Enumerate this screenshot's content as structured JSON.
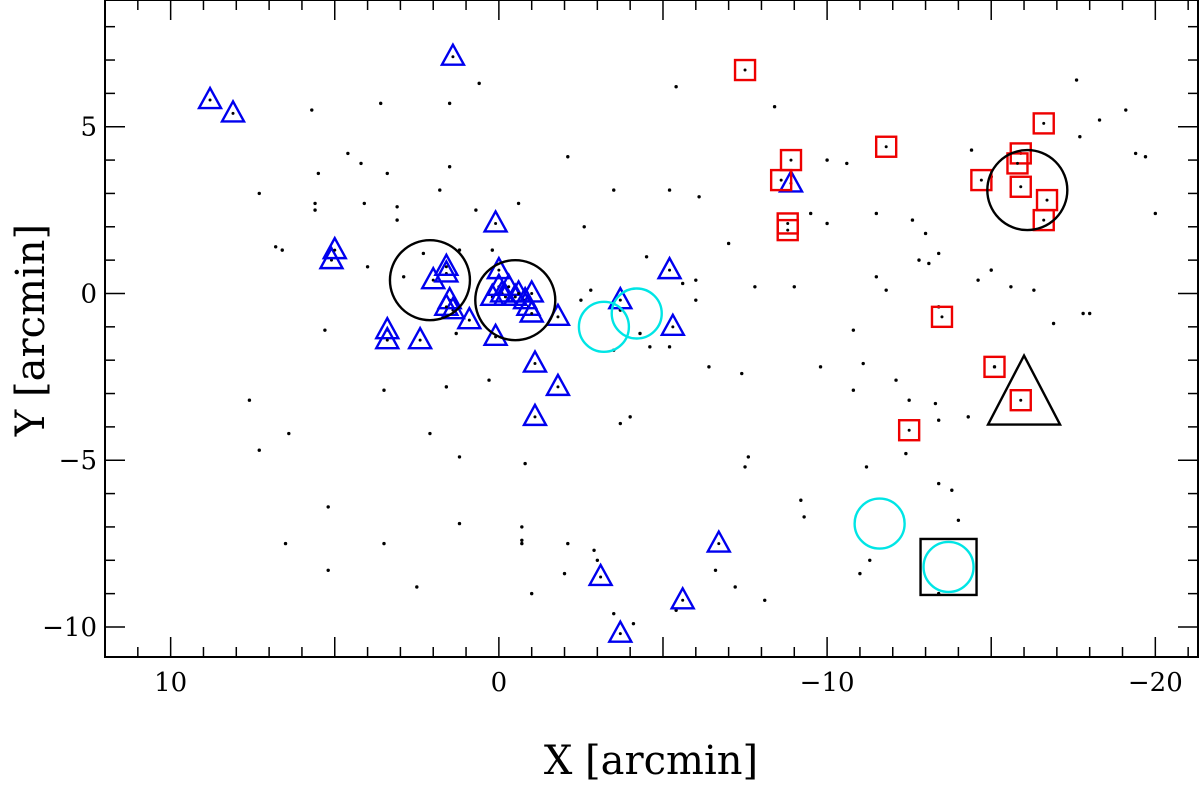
{
  "chart_data": {
    "type": "scatter",
    "title": "",
    "xlabel": "X [arcmin]",
    "ylabel": "Y [arcmin]",
    "xlim": [
      12,
      -21.3
    ],
    "ylim": [
      -10.9,
      8.8
    ],
    "x_reversed": true,
    "grid": false,
    "legend": "none",
    "x_ticks": [
      10,
      0,
      -10,
      -20
    ],
    "x_tick_labels": [
      "10",
      "0",
      "−10",
      "−20"
    ],
    "y_ticks": [
      5,
      0,
      -5,
      -10
    ],
    "y_tick_labels": [
      "5",
      "0",
      "−5",
      "−10"
    ],
    "series": [
      {
        "marker": "dot",
        "color": "#000000",
        "points": [
          [
            5.7,
            5.5
          ],
          [
            3.6,
            5.7
          ],
          [
            1.5,
            5.7
          ],
          [
            0.6,
            6.3
          ],
          [
            -5.4,
            6.2
          ],
          [
            -8.4,
            5.6
          ],
          [
            -17.6,
            6.4
          ],
          [
            -19.1,
            5.5
          ],
          [
            4.6,
            4.2
          ],
          [
            4.2,
            3.9
          ],
          [
            3.4,
            3.6
          ],
          [
            5.5,
            3.6
          ],
          [
            1.5,
            3.8
          ],
          [
            -2.1,
            4.1
          ],
          [
            -10.0,
            4.0
          ],
          [
            -10.6,
            3.9
          ],
          [
            -14.4,
            4.3
          ],
          [
            -15.0,
            3.5
          ],
          [
            -17.7,
            4.7
          ],
          [
            -18.3,
            5.2
          ],
          [
            -19.4,
            4.2
          ],
          [
            -19.7,
            4.1
          ],
          [
            -20.0,
            2.4
          ],
          [
            7.3,
            3.0
          ],
          [
            5.6,
            2.5
          ],
          [
            5.6,
            2.7
          ],
          [
            4.1,
            2.7
          ],
          [
            3.1,
            2.2
          ],
          [
            3.1,
            2.6
          ],
          [
            1.8,
            3.1
          ],
          [
            0.7,
            2.5
          ],
          [
            -0.6,
            2.7
          ],
          [
            -2.6,
            2.0
          ],
          [
            -3.5,
            3.1
          ],
          [
            -5.2,
            3.1
          ],
          [
            -6.1,
            2.9
          ],
          [
            -9.5,
            2.4
          ],
          [
            -10.0,
            2.1
          ],
          [
            -11.5,
            2.4
          ],
          [
            -12.6,
            2.2
          ],
          [
            -13.0,
            1.8
          ],
          [
            -13.4,
            1.2
          ],
          [
            -7.0,
            1.5
          ],
          [
            6.8,
            1.4
          ],
          [
            6.6,
            1.3
          ],
          [
            2.3,
            1.2
          ],
          [
            1.2,
            1.3
          ],
          [
            0.2,
            1.3
          ],
          [
            4.0,
            0.8
          ],
          [
            2.9,
            0.5
          ],
          [
            -4.5,
            1.1
          ],
          [
            -6.0,
            0.4
          ],
          [
            -5.6,
            0.3
          ],
          [
            -7.8,
            0.2
          ],
          [
            -9.0,
            0.2
          ],
          [
            -11.5,
            0.5
          ],
          [
            -12.8,
            1.0
          ],
          [
            -13.1,
            0.9
          ],
          [
            -14.6,
            0.4
          ],
          [
            -15.0,
            0.7
          ],
          [
            -15.6,
            0.2
          ],
          [
            -16.3,
            0.1
          ],
          [
            -18.0,
            -0.6
          ],
          [
            -13.4,
            -0.4
          ],
          [
            -11.8,
            0.1
          ],
          [
            -6.0,
            -0.2
          ],
          [
            -2.5,
            -0.2
          ],
          [
            -2.8,
            0.1
          ],
          [
            -3.7,
            -0.5
          ],
          [
            -4.3,
            -1.2
          ],
          [
            1.3,
            -1.2
          ],
          [
            5.3,
            -1.1
          ],
          [
            3.5,
            -2.9
          ],
          [
            1.6,
            -2.8
          ],
          [
            0.3,
            -2.6
          ],
          [
            -3.5,
            -1.7
          ],
          [
            -4.6,
            -1.6
          ],
          [
            -5.2,
            -1.6
          ],
          [
            -6.4,
            -2.2
          ],
          [
            -7.4,
            -2.4
          ],
          [
            -9.8,
            -2.2
          ],
          [
            -10.8,
            -1.1
          ],
          [
            -11.1,
            -2.1
          ],
          [
            -12.1,
            -2.6
          ],
          [
            -12.5,
            -3.2
          ],
          [
            -13.3,
            -3.3
          ],
          [
            -14.3,
            -3.7
          ],
          [
            -15.1,
            -2.2
          ],
          [
            -16.9,
            -0.9
          ],
          [
            -17.8,
            -0.6
          ],
          [
            -10.8,
            -2.9
          ],
          [
            7.6,
            -3.2
          ],
          [
            6.4,
            -4.2
          ],
          [
            7.3,
            -4.7
          ],
          [
            2.1,
            -4.2
          ],
          [
            1.2,
            -4.9
          ],
          [
            -0.8,
            -5.1
          ],
          [
            -3.7,
            -3.9
          ],
          [
            -4.0,
            -3.7
          ],
          [
            -7.6,
            -4.9
          ],
          [
            -7.5,
            -5.2
          ],
          [
            -11.2,
            -5.2
          ],
          [
            -12.4,
            -4.8
          ],
          [
            -13.4,
            -5.7
          ],
          [
            -13.8,
            -5.9
          ],
          [
            -13.4,
            -3.8
          ],
          [
            6.5,
            -7.5
          ],
          [
            5.2,
            -8.3
          ],
          [
            3.5,
            -7.5
          ],
          [
            2.5,
            -8.8
          ],
          [
            1.2,
            -6.9
          ],
          [
            -0.7,
            -7.0
          ],
          [
            -0.7,
            -7.4
          ],
          [
            -0.7,
            -7.5
          ],
          [
            -2.1,
            -7.5
          ],
          [
            -2.9,
            -7.7
          ],
          [
            -3.0,
            -8.0
          ],
          [
            -4.1,
            -9.9
          ],
          [
            -5.4,
            -9.5
          ],
          [
            -6.6,
            -8.3
          ],
          [
            -7.2,
            -8.8
          ],
          [
            -8.1,
            -9.2
          ],
          [
            -9.2,
            -6.2
          ],
          [
            -9.3,
            -6.7
          ],
          [
            -11.0,
            -8.4
          ],
          [
            -11.3,
            -8.0
          ],
          [
            -13.4,
            -9.0
          ],
          [
            -14.0,
            -6.8
          ],
          [
            -3.5,
            -9.6
          ],
          [
            -2.0,
            -8.4
          ],
          [
            -1.0,
            -9.0
          ],
          [
            5.2,
            -6.4
          ]
        ]
      },
      {
        "marker": "triangle",
        "color": "#0000ee",
        "points": [
          [
            8.8,
            5.8
          ],
          [
            8.1,
            5.4
          ],
          [
            1.4,
            7.1
          ],
          [
            5.1,
            1.0
          ],
          [
            5.0,
            1.3
          ],
          [
            3.4,
            -1.1
          ],
          [
            3.4,
            -1.4
          ],
          [
            2.4,
            -1.4
          ],
          [
            2.0,
            0.4
          ],
          [
            1.6,
            0.6
          ],
          [
            1.6,
            0.8
          ],
          [
            1.4,
            -0.5
          ],
          [
            1.5,
            -0.2
          ],
          [
            1.6,
            -0.4
          ],
          [
            0.9,
            -0.8
          ],
          [
            0.1,
            -1.3
          ],
          [
            0.2,
            -0.1
          ],
          [
            0.0,
            0.2
          ],
          [
            -0.1,
            0.0
          ],
          [
            -0.2,
            -0.1
          ],
          [
            0.0,
            0.7
          ],
          [
            0.1,
            2.1
          ],
          [
            -0.3,
            0.2
          ],
          [
            -0.5,
            -0.1
          ],
          [
            -0.6,
            0.0
          ],
          [
            -0.8,
            -0.2
          ],
          [
            -0.9,
            -0.4
          ],
          [
            -1.0,
            -0.6
          ],
          [
            -1.0,
            0.0
          ],
          [
            -1.8,
            -0.7
          ],
          [
            -1.1,
            -2.1
          ],
          [
            -1.1,
            -3.7
          ],
          [
            -1.8,
            -2.8
          ],
          [
            -3.7,
            -0.2
          ],
          [
            -5.2,
            0.7
          ],
          [
            -5.3,
            -1.0
          ],
          [
            -8.9,
            3.3
          ],
          [
            -6.7,
            -7.5
          ],
          [
            -5.6,
            -9.2
          ],
          [
            -3.1,
            -8.5
          ],
          [
            -3.7,
            -10.2
          ]
        ]
      },
      {
        "marker": "square",
        "color": "#ee0000",
        "points": [
          [
            -7.5,
            6.7
          ],
          [
            -11.8,
            4.4
          ],
          [
            -16.6,
            5.1
          ],
          [
            -15.9,
            4.2
          ],
          [
            -15.8,
            3.9
          ],
          [
            -14.7,
            3.4
          ],
          [
            -8.9,
            4.0
          ],
          [
            -8.6,
            3.4
          ],
          [
            -15.9,
            3.2
          ],
          [
            -16.7,
            2.8
          ],
          [
            -16.6,
            2.2
          ],
          [
            -8.8,
            2.1
          ],
          [
            -8.8,
            1.9
          ],
          [
            -13.5,
            -0.7
          ],
          [
            -15.1,
            -2.2
          ],
          [
            -15.9,
            -3.2
          ],
          [
            -12.5,
            -4.1
          ]
        ]
      },
      {
        "marker": "circle-open",
        "color": "#00e5e5",
        "points": [
          [
            -3.2,
            -1.0
          ],
          [
            -4.2,
            -0.6
          ],
          [
            -11.6,
            -6.9
          ],
          [
            -13.7,
            -8.2
          ]
        ]
      },
      {
        "marker": "circle-open-large",
        "color": "#000000",
        "points": [
          [
            2.1,
            0.4
          ],
          [
            -0.5,
            -0.2
          ],
          [
            -16.1,
            3.1
          ]
        ]
      },
      {
        "marker": "triangle-open-large",
        "color": "#000000",
        "points": [
          [
            -16.0,
            -3.0
          ]
        ]
      },
      {
        "marker": "square-open-large",
        "color": "#000000",
        "points": [
          [
            -13.7,
            -8.2
          ]
        ]
      }
    ]
  }
}
